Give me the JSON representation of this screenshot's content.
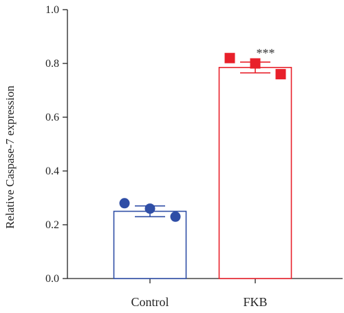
{
  "chart_data": {
    "type": "bar",
    "categories": [
      "Control",
      "FKB"
    ],
    "values": [
      0.25,
      0.785
    ],
    "errors": [
      0.02,
      0.02
    ],
    "points": [
      [
        0.28,
        0.26,
        0.23
      ],
      [
        0.82,
        0.8,
        0.76
      ]
    ],
    "colors": [
      "#2f4ea6",
      "#e8202a"
    ],
    "markers": [
      "circle",
      "square"
    ],
    "annotations": [
      "",
      "***"
    ],
    "ylabel": "Relative Caspase-7 expression",
    "xlabel": "",
    "ylim": [
      0,
      1.0
    ],
    "yticks": [
      0.0,
      0.2,
      0.4,
      0.6,
      0.8,
      1.0
    ],
    "ytick_labels": [
      "0.0",
      "0.2",
      "0.4",
      "0.6",
      "0.8",
      "1.0"
    ],
    "grid": false
  }
}
